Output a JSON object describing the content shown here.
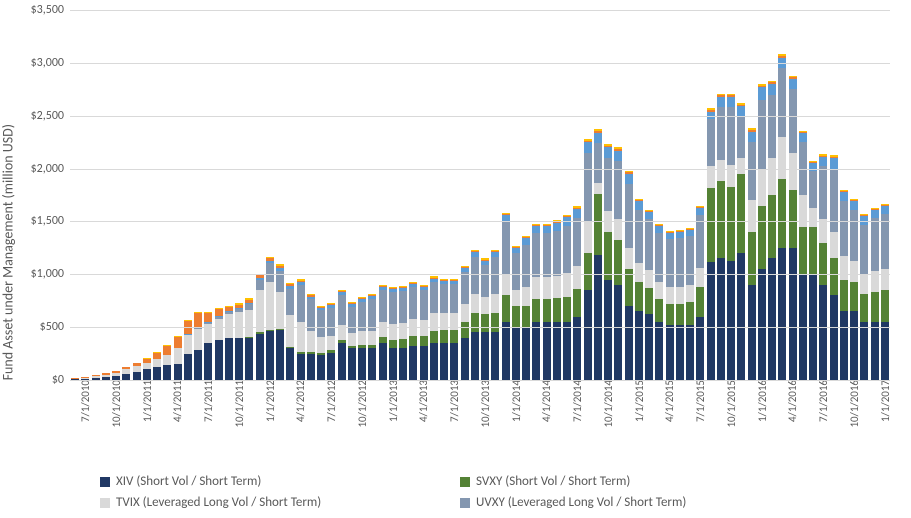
{
  "chart": {
    "type": "stacked-bar",
    "background_color": "#ffffff",
    "grid_color": "#d9d9d9",
    "axis_text_color": "#595959",
    "font_family": "Calibri, Arial, sans-serif",
    "y_axis": {
      "title": "Fund Asset under Management (million USD)",
      "title_fontsize": 14,
      "min": 0,
      "max": 3500,
      "tick_step": 500,
      "ticks": [
        {
          "value": 0,
          "label": "$0"
        },
        {
          "value": 500,
          "label": "$500"
        },
        {
          "value": 1000,
          "label": "$1,000"
        },
        {
          "value": 1500,
          "label": "$1,500"
        },
        {
          "value": 2000,
          "label": "$2,000"
        },
        {
          "value": 2500,
          "label": "$2,500"
        },
        {
          "value": 3000,
          "label": "$3,000"
        },
        {
          "value": 3500,
          "label": "$3,500"
        }
      ],
      "tick_fontsize": 12
    },
    "x_axis": {
      "tick_fontsize": 11,
      "tick_rotation_deg": -90,
      "show_every": 3,
      "categories": [
        "7/1/2010",
        "8/1/2010",
        "9/1/2010",
        "10/1/2010",
        "11/1/2010",
        "12/1/2010",
        "1/1/2011",
        "2/1/2011",
        "3/1/2011",
        "4/1/2011",
        "5/1/2011",
        "6/1/2011",
        "7/1/2011",
        "8/1/2011",
        "9/1/2011",
        "10/1/2011",
        "11/1/2011",
        "12/1/2011",
        "1/1/2012",
        "2/1/2012",
        "3/1/2012",
        "4/1/2012",
        "5/1/2012",
        "6/1/2012",
        "7/1/2012",
        "8/1/2012",
        "9/1/2012",
        "10/1/2012",
        "11/1/2012",
        "12/1/2012",
        "1/1/2013",
        "2/1/2013",
        "3/1/2013",
        "4/1/2013",
        "5/1/2013",
        "6/1/2013",
        "7/1/2013",
        "8/1/2013",
        "9/1/2013",
        "10/1/2013",
        "11/1/2013",
        "12/1/2013",
        "1/1/2014",
        "2/1/2014",
        "3/1/2014",
        "4/1/2014",
        "5/1/2014",
        "6/1/2014",
        "7/1/2014",
        "8/1/2014",
        "9/1/2014",
        "10/1/2014",
        "11/1/2014",
        "12/1/2014",
        "1/1/2015",
        "2/1/2015",
        "3/1/2015",
        "4/1/2015",
        "5/1/2015",
        "6/1/2015",
        "7/1/2015",
        "8/1/2015",
        "9/1/2015",
        "10/1/2015",
        "11/1/2015",
        "12/1/2015",
        "1/1/2016",
        "2/1/2016",
        "3/1/2016",
        "4/1/2016",
        "5/1/2016",
        "6/1/2016",
        "7/1/2016",
        "8/1/2016",
        "9/1/2016",
        "10/1/2016",
        "11/1/2016",
        "12/1/2016",
        "1/1/2017",
        "2/1/2017"
      ]
    },
    "series": [
      {
        "key": "XIV",
        "label": "XIV (Short Vol / Short Term)",
        "color": "#203864",
        "legend_order": 1,
        "stack_order": 1
      },
      {
        "key": "SVXY",
        "label": "SVXY (Short Vol / Short Term)",
        "color": "#548235",
        "legend_order": 2,
        "stack_order": 2
      },
      {
        "key": "TVIX",
        "label": "TVIX (Leveraged Long Vol / Short Term)",
        "color": "#d9d9d9",
        "legend_order": 3,
        "stack_order": 3
      },
      {
        "key": "UVXY",
        "label": "UVXY (Leveraged Long Vol / Short Term)",
        "color": "#8497b0",
        "legend_order": 4,
        "stack_order": 4
      },
      {
        "key": "OTHER1",
        "label": "",
        "color": "#5b9bd5",
        "legend_order": 0,
        "stack_order": 5
      },
      {
        "key": "OTHER2",
        "label": "",
        "color": "#ed7d31",
        "legend_order": 0,
        "stack_order": 6
      },
      {
        "key": "OTHER3",
        "label": "",
        "color": "#ffc000",
        "legend_order": 0,
        "stack_order": 7
      }
    ],
    "data": [
      {
        "XIV": 5,
        "SVXY": 0,
        "TVIX": 5,
        "UVXY": 0,
        "OTHER1": 0,
        "OTHER2": 5,
        "OTHER3": 0
      },
      {
        "XIV": 10,
        "SVXY": 0,
        "TVIX": 10,
        "UVXY": 0,
        "OTHER1": 0,
        "OTHER2": 10,
        "OTHER3": 0
      },
      {
        "XIV": 20,
        "SVXY": 0,
        "TVIX": 15,
        "UVXY": 0,
        "OTHER1": 0,
        "OTHER2": 10,
        "OTHER3": 0
      },
      {
        "XIV": 30,
        "SVXY": 0,
        "TVIX": 20,
        "UVXY": 0,
        "OTHER1": 0,
        "OTHER2": 15,
        "OTHER3": 0
      },
      {
        "XIV": 40,
        "SVXY": 0,
        "TVIX": 30,
        "UVXY": 0,
        "OTHER1": 0,
        "OTHER2": 20,
        "OTHER3": 0
      },
      {
        "XIV": 60,
        "SVXY": 0,
        "TVIX": 40,
        "UVXY": 0,
        "OTHER1": 0,
        "OTHER2": 25,
        "OTHER3": 0
      },
      {
        "XIV": 80,
        "SVXY": 0,
        "TVIX": 50,
        "UVXY": 0,
        "OTHER1": 0,
        "OTHER2": 30,
        "OTHER3": 0
      },
      {
        "XIV": 100,
        "SVXY": 0,
        "TVIX": 60,
        "UVXY": 0,
        "OTHER1": 0,
        "OTHER2": 40,
        "OTHER3": 5
      },
      {
        "XIV": 120,
        "SVXY": 0,
        "TVIX": 80,
        "UVXY": 0,
        "OTHER1": 0,
        "OTHER2": 60,
        "OTHER3": 10
      },
      {
        "XIV": 140,
        "SVXY": 0,
        "TVIX": 100,
        "UVXY": 0,
        "OTHER1": 0,
        "OTHER2": 80,
        "OTHER3": 10
      },
      {
        "XIV": 150,
        "SVXY": 0,
        "TVIX": 150,
        "UVXY": 0,
        "OTHER1": 5,
        "OTHER2": 100,
        "OTHER3": 10
      },
      {
        "XIV": 250,
        "SVXY": 0,
        "TVIX": 180,
        "UVXY": 0,
        "OTHER1": 10,
        "OTHER2": 120,
        "OTHER3": 10
      },
      {
        "XIV": 280,
        "SVXY": 0,
        "TVIX": 200,
        "UVXY": 10,
        "OTHER1": 10,
        "OTHER2": 130,
        "OTHER3": 15
      },
      {
        "XIV": 350,
        "SVXY": 0,
        "TVIX": 180,
        "UVXY": 10,
        "OTHER1": 10,
        "OTHER2": 80,
        "OTHER3": 15
      },
      {
        "XIV": 380,
        "SVXY": 0,
        "TVIX": 200,
        "UVXY": 20,
        "OTHER1": 10,
        "OTHER2": 60,
        "OTHER3": 15
      },
      {
        "XIV": 400,
        "SVXY": 0,
        "TVIX": 220,
        "UVXY": 20,
        "OTHER1": 10,
        "OTHER2": 40,
        "OTHER3": 15
      },
      {
        "XIV": 400,
        "SVXY": 0,
        "TVIX": 240,
        "UVXY": 30,
        "OTHER1": 10,
        "OTHER2": 30,
        "OTHER3": 15
      },
      {
        "XIV": 400,
        "SVXY": 5,
        "TVIX": 260,
        "UVXY": 50,
        "OTHER1": 15,
        "OTHER2": 30,
        "OTHER3": 15
      },
      {
        "XIV": 440,
        "SVXY": 10,
        "TVIX": 400,
        "UVXY": 100,
        "OTHER1": 20,
        "OTHER2": 20,
        "OTHER3": 15
      },
      {
        "XIV": 460,
        "SVXY": 15,
        "TVIX": 450,
        "UVXY": 180,
        "OTHER1": 25,
        "OTHER2": 20,
        "OTHER3": 15
      },
      {
        "XIV": 470,
        "SVXY": 15,
        "TVIX": 350,
        "UVXY": 200,
        "OTHER1": 25,
        "OTHER2": 20,
        "OTHER3": 15
      },
      {
        "XIV": 300,
        "SVXY": 15,
        "TVIX": 300,
        "UVXY": 250,
        "OTHER1": 25,
        "OTHER2": 15,
        "OTHER3": 15
      },
      {
        "XIV": 250,
        "SVXY": 15,
        "TVIX": 280,
        "UVXY": 350,
        "OTHER1": 30,
        "OTHER2": 15,
        "OTHER3": 15
      },
      {
        "XIV": 250,
        "SVXY": 15,
        "TVIX": 200,
        "UVXY": 300,
        "OTHER1": 25,
        "OTHER2": 10,
        "OTHER3": 10
      },
      {
        "XIV": 240,
        "SVXY": 20,
        "TVIX": 150,
        "UVXY": 250,
        "OTHER1": 25,
        "OTHER2": 10,
        "OTHER3": 10
      },
      {
        "XIV": 260,
        "SVXY": 20,
        "TVIX": 140,
        "UVXY": 260,
        "OTHER1": 25,
        "OTHER2": 10,
        "OTHER3": 10
      },
      {
        "XIV": 350,
        "SVXY": 25,
        "TVIX": 150,
        "UVXY": 280,
        "OTHER1": 30,
        "OTHER2": 10,
        "OTHER3": 10
      },
      {
        "XIV": 300,
        "SVXY": 25,
        "TVIX": 120,
        "UVXY": 250,
        "OTHER1": 25,
        "OTHER2": 10,
        "OTHER3": 10
      },
      {
        "XIV": 300,
        "SVXY": 30,
        "TVIX": 130,
        "UVXY": 280,
        "OTHER1": 30,
        "OTHER2": 10,
        "OTHER3": 10
      },
      {
        "XIV": 300,
        "SVXY": 35,
        "TVIX": 130,
        "UVXY": 300,
        "OTHER1": 30,
        "OTHER2": 10,
        "OTHER3": 10
      },
      {
        "XIV": 350,
        "SVXY": 60,
        "TVIX": 140,
        "UVXY": 300,
        "OTHER1": 30,
        "OTHER2": 10,
        "OTHER3": 10
      },
      {
        "XIV": 300,
        "SVXY": 80,
        "TVIX": 150,
        "UVXY": 300,
        "OTHER1": 30,
        "OTHER2": 10,
        "OTHER3": 10
      },
      {
        "XIV": 300,
        "SVXY": 90,
        "TVIX": 150,
        "UVXY": 300,
        "OTHER1": 30,
        "OTHER2": 10,
        "OTHER3": 10
      },
      {
        "XIV": 320,
        "SVXY": 100,
        "TVIX": 160,
        "UVXY": 300,
        "OTHER1": 30,
        "OTHER2": 10,
        "OTHER3": 10
      },
      {
        "XIV": 320,
        "SVXY": 100,
        "TVIX": 150,
        "UVXY": 280,
        "OTHER1": 30,
        "OTHER2": 10,
        "OTHER3": 10
      },
      {
        "XIV": 350,
        "SVXY": 110,
        "TVIX": 170,
        "UVXY": 300,
        "OTHER1": 30,
        "OTHER2": 10,
        "OTHER3": 10
      },
      {
        "XIV": 350,
        "SVXY": 120,
        "TVIX": 160,
        "UVXY": 280,
        "OTHER1": 30,
        "OTHER2": 10,
        "OTHER3": 10
      },
      {
        "XIV": 350,
        "SVXY": 120,
        "TVIX": 160,
        "UVXY": 280,
        "OTHER1": 30,
        "OTHER2": 10,
        "OTHER3": 10
      },
      {
        "XIV": 400,
        "SVXY": 150,
        "TVIX": 170,
        "UVXY": 300,
        "OTHER1": 40,
        "OTHER2": 10,
        "OTHER3": 10
      },
      {
        "XIV": 450,
        "SVXY": 180,
        "TVIX": 180,
        "UVXY": 350,
        "OTHER1": 50,
        "OTHER2": 10,
        "OTHER3": 10
      },
      {
        "XIV": 450,
        "SVXY": 170,
        "TVIX": 170,
        "UVXY": 300,
        "OTHER1": 40,
        "OTHER2": 10,
        "OTHER3": 10
      },
      {
        "XIV": 450,
        "SVXY": 180,
        "TVIX": 180,
        "UVXY": 350,
        "OTHER1": 50,
        "OTHER2": 10,
        "OTHER3": 10
      },
      {
        "XIV": 550,
        "SVXY": 250,
        "TVIX": 200,
        "UVXY": 500,
        "OTHER1": 60,
        "OTHER2": 10,
        "OTHER3": 15
      },
      {
        "XIV": 500,
        "SVXY": 200,
        "TVIX": 150,
        "UVXY": 350,
        "OTHER1": 50,
        "OTHER2": 10,
        "OTHER3": 10
      },
      {
        "XIV": 500,
        "SVXY": 200,
        "TVIX": 180,
        "UVXY": 400,
        "OTHER1": 60,
        "OTHER2": 10,
        "OTHER3": 10
      },
      {
        "XIV": 550,
        "SVXY": 220,
        "TVIX": 200,
        "UVXY": 420,
        "OTHER1": 70,
        "OTHER2": 10,
        "OTHER3": 10
      },
      {
        "XIV": 550,
        "SVXY": 220,
        "TVIX": 200,
        "UVXY": 420,
        "OTHER1": 70,
        "OTHER2": 10,
        "OTHER3": 10
      },
      {
        "XIV": 550,
        "SVXY": 230,
        "TVIX": 200,
        "UVXY": 430,
        "OTHER1": 80,
        "OTHER2": 10,
        "OTHER3": 10
      },
      {
        "XIV": 550,
        "SVXY": 240,
        "TVIX": 220,
        "UVXY": 450,
        "OTHER1": 80,
        "OTHER2": 10,
        "OTHER3": 15
      },
      {
        "XIV": 600,
        "SVXY": 260,
        "TVIX": 220,
        "UVXY": 450,
        "OTHER1": 90,
        "OTHER2": 10,
        "OTHER3": 15
      },
      {
        "XIV": 850,
        "SVXY": 350,
        "TVIX": 300,
        "UVXY": 650,
        "OTHER1": 100,
        "OTHER2": 15,
        "OTHER3": 20
      },
      {
        "XIV": 1180,
        "SVXY": 580,
        "TVIX": 100,
        "UVXY": 380,
        "OTHER1": 100,
        "OTHER2": 15,
        "OTHER3": 20
      },
      {
        "XIV": 950,
        "SVXY": 450,
        "TVIX": 200,
        "UVXY": 500,
        "OTHER1": 100,
        "OTHER2": 15,
        "OTHER3": 15
      },
      {
        "XIV": 900,
        "SVXY": 420,
        "TVIX": 200,
        "UVXY": 550,
        "OTHER1": 100,
        "OTHER2": 15,
        "OTHER3": 15
      },
      {
        "XIV": 700,
        "SVXY": 350,
        "TVIX": 200,
        "UVXY": 600,
        "OTHER1": 100,
        "OTHER2": 15,
        "OTHER3": 15
      },
      {
        "XIV": 650,
        "SVXY": 280,
        "TVIX": 180,
        "UVXY": 500,
        "OTHER1": 80,
        "OTHER2": 10,
        "OTHER3": 10
      },
      {
        "XIV": 620,
        "SVXY": 250,
        "TVIX": 170,
        "UVXY": 480,
        "OTHER1": 70,
        "OTHER2": 10,
        "OTHER3": 10
      },
      {
        "XIV": 550,
        "SVXY": 220,
        "TVIX": 160,
        "UVXY": 460,
        "OTHER1": 70,
        "OTHER2": 10,
        "OTHER3": 10
      },
      {
        "XIV": 520,
        "SVXY": 200,
        "TVIX": 160,
        "UVXY": 450,
        "OTHER1": 60,
        "OTHER2": 10,
        "OTHER3": 10
      },
      {
        "XIV": 520,
        "SVXY": 200,
        "TVIX": 160,
        "UVXY": 460,
        "OTHER1": 60,
        "OTHER2": 10,
        "OTHER3": 10
      },
      {
        "XIV": 520,
        "SVXY": 220,
        "TVIX": 160,
        "UVXY": 460,
        "OTHER1": 60,
        "OTHER2": 10,
        "OTHER3": 10
      },
      {
        "XIV": 600,
        "SVXY": 280,
        "TVIX": 180,
        "UVXY": 500,
        "OTHER1": 70,
        "OTHER2": 10,
        "OTHER3": 10
      },
      {
        "XIV": 1120,
        "SVXY": 700,
        "TVIX": 200,
        "UVXY": 450,
        "OTHER1": 70,
        "OTHER2": 15,
        "OTHER3": 15
      },
      {
        "XIV": 1150,
        "SVXY": 730,
        "TVIX": 200,
        "UVXY": 500,
        "OTHER1": 100,
        "OTHER2": 15,
        "OTHER3": 15
      },
      {
        "XIV": 1130,
        "SVXY": 700,
        "TVIX": 200,
        "UVXY": 550,
        "OTHER1": 100,
        "OTHER2": 15,
        "OTHER3": 15
      },
      {
        "XIV": 1200,
        "SVXY": 750,
        "TVIX": 150,
        "UVXY": 400,
        "OTHER1": 90,
        "OTHER2": 15,
        "OTHER3": 15
      },
      {
        "XIV": 900,
        "SVXY": 500,
        "TVIX": 300,
        "UVXY": 550,
        "OTHER1": 100,
        "OTHER2": 15,
        "OTHER3": 15
      },
      {
        "XIV": 1050,
        "SVXY": 600,
        "TVIX": 350,
        "UVXY": 650,
        "OTHER1": 120,
        "OTHER2": 15,
        "OTHER3": 15
      },
      {
        "XIV": 1150,
        "SVXY": 600,
        "TVIX": 350,
        "UVXY": 600,
        "OTHER1": 100,
        "OTHER2": 15,
        "OTHER3": 15
      },
      {
        "XIV": 1250,
        "SVXY": 650,
        "TVIX": 400,
        "UVXY": 650,
        "OTHER1": 100,
        "OTHER2": 15,
        "OTHER3": 15
      },
      {
        "XIV": 1250,
        "SVXY": 550,
        "TVIX": 350,
        "UVXY": 600,
        "OTHER1": 100,
        "OTHER2": 15,
        "OTHER3": 15
      },
      {
        "XIV": 1000,
        "SVXY": 450,
        "TVIX": 300,
        "UVXY": 500,
        "OTHER1": 90,
        "OTHER2": 10,
        "OTHER3": 10
      },
      {
        "XIV": 1000,
        "SVXY": 450,
        "TVIX": 180,
        "UVXY": 350,
        "OTHER1": 70,
        "OTHER2": 10,
        "OTHER3": 10
      },
      {
        "XIV": 900,
        "SVXY": 400,
        "TVIX": 220,
        "UVXY": 500,
        "OTHER1": 90,
        "OTHER2": 10,
        "OTHER3": 15
      },
      {
        "XIV": 800,
        "SVXY": 350,
        "TVIX": 250,
        "UVXY": 600,
        "OTHER1": 100,
        "OTHER2": 10,
        "OTHER3": 15
      },
      {
        "XIV": 650,
        "SVXY": 300,
        "TVIX": 220,
        "UVXY": 520,
        "OTHER1": 90,
        "OTHER2": 10,
        "OTHER3": 10
      },
      {
        "XIV": 650,
        "SVXY": 280,
        "TVIX": 200,
        "UVXY": 480,
        "OTHER1": 80,
        "OTHER2": 10,
        "OTHER3": 10
      },
      {
        "XIV": 550,
        "SVXY": 260,
        "TVIX": 180,
        "UVXY": 480,
        "OTHER1": 80,
        "OTHER2": 10,
        "OTHER3": 10
      },
      {
        "XIV": 550,
        "SVXY": 280,
        "TVIX": 200,
        "UVXY": 500,
        "OTHER1": 80,
        "OTHER2": 10,
        "OTHER3": 10
      },
      {
        "XIV": 550,
        "SVXY": 300,
        "TVIX": 200,
        "UVXY": 520,
        "OTHER1": 80,
        "OTHER2": 10,
        "OTHER3": 10
      }
    ]
  }
}
